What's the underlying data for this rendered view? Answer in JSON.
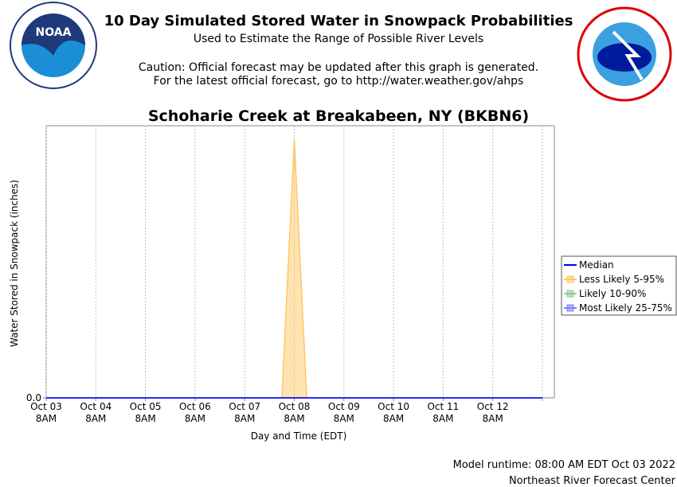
{
  "header": {
    "title": "10 Day Simulated Stored Water in Snowpack Probabilities",
    "subtitle": "Used to Estimate the Range of Possible River Levels",
    "caution_1": "Caution: Official forecast may be updated after this graph is generated.",
    "caution_2": "For the latest official forecast, go to http://water.weather.gov/ahps"
  },
  "footer": {
    "runtime": "Model runtime: 08:00 AM EDT Oct 03 2022",
    "center": "Northeast River Forecast Center"
  },
  "chart_data": {
    "type": "area",
    "title": "Schoharie Creek at Breakabeen, NY (BKBN6)",
    "x_label": "Day and Time (EDT)",
    "y_label": "Water Stored in Snowpack (inches)",
    "categories": [
      "Oct 03",
      null,
      null,
      null,
      "Oct 04",
      null,
      null,
      null,
      "Oct 05",
      null,
      null,
      null,
      "Oct 06",
      null,
      null,
      null,
      "Oct 07",
      null,
      null,
      null,
      "Oct 08",
      null,
      null,
      null,
      "Oct 09",
      null,
      null,
      null,
      "Oct 10",
      null,
      null,
      null,
      "Oct 11",
      null,
      null,
      null,
      "Oct 12",
      null,
      null,
      null,
      null
    ],
    "category_sublabels": [
      "8AM",
      null,
      null,
      null,
      "8AM",
      null,
      null,
      null,
      "8AM",
      null,
      null,
      null,
      "8AM",
      null,
      null,
      null,
      "8AM",
      null,
      null,
      null,
      "8AM",
      null,
      null,
      null,
      "8AM",
      null,
      null,
      null,
      "8AM",
      null,
      null,
      null,
      "8AM",
      null,
      null,
      null,
      "8AM",
      null,
      null,
      null,
      null
    ],
    "ylim": [
      0,
      1
    ],
    "yticks": [
      {
        "value": 0,
        "label": "0.0"
      }
    ],
    "grid": true,
    "legend": "right",
    "series": [
      {
        "name": "Median",
        "color": "#0000ff",
        "kind": "line",
        "values": [
          0,
          0,
          0,
          0,
          0,
          0,
          0,
          0,
          0,
          0,
          0,
          0,
          0,
          0,
          0,
          0,
          0,
          0,
          0,
          0,
          0,
          0,
          0,
          0,
          0,
          0,
          0,
          0,
          0,
          0,
          0,
          0,
          0,
          0,
          0,
          0,
          0,
          0,
          0,
          0,
          0
        ]
      },
      {
        "name": "Less Likely 5-95%",
        "color": "#ffc864",
        "kind": "area",
        "values": [
          0,
          0,
          0,
          0,
          0,
          0,
          0,
          0,
          0,
          0,
          0,
          0,
          0,
          0,
          0,
          0,
          0,
          0,
          0,
          0,
          0.95,
          0,
          0,
          0,
          0,
          0,
          0,
          0,
          0,
          0,
          0,
          0,
          0,
          0,
          0,
          0,
          0,
          0,
          0,
          0,
          0
        ]
      },
      {
        "name": "Likely 10-90%",
        "color": "#96c896",
        "kind": "area",
        "values": [
          0,
          0,
          0,
          0,
          0,
          0,
          0,
          0,
          0,
          0,
          0,
          0,
          0,
          0,
          0,
          0,
          0,
          0,
          0,
          0,
          0,
          0,
          0,
          0,
          0,
          0,
          0,
          0,
          0,
          0,
          0,
          0,
          0,
          0,
          0,
          0,
          0,
          0,
          0,
          0,
          0
        ]
      },
      {
        "name": "Most Likely 25-75%",
        "color": "#8080ff",
        "kind": "area",
        "values": [
          0,
          0,
          0,
          0,
          0,
          0,
          0,
          0,
          0,
          0,
          0,
          0,
          0,
          0,
          0,
          0,
          0,
          0,
          0,
          0,
          0,
          0,
          0,
          0,
          0,
          0,
          0,
          0,
          0,
          0,
          0,
          0,
          0,
          0,
          0,
          0,
          0,
          0,
          0,
          0,
          0
        ]
      }
    ]
  }
}
